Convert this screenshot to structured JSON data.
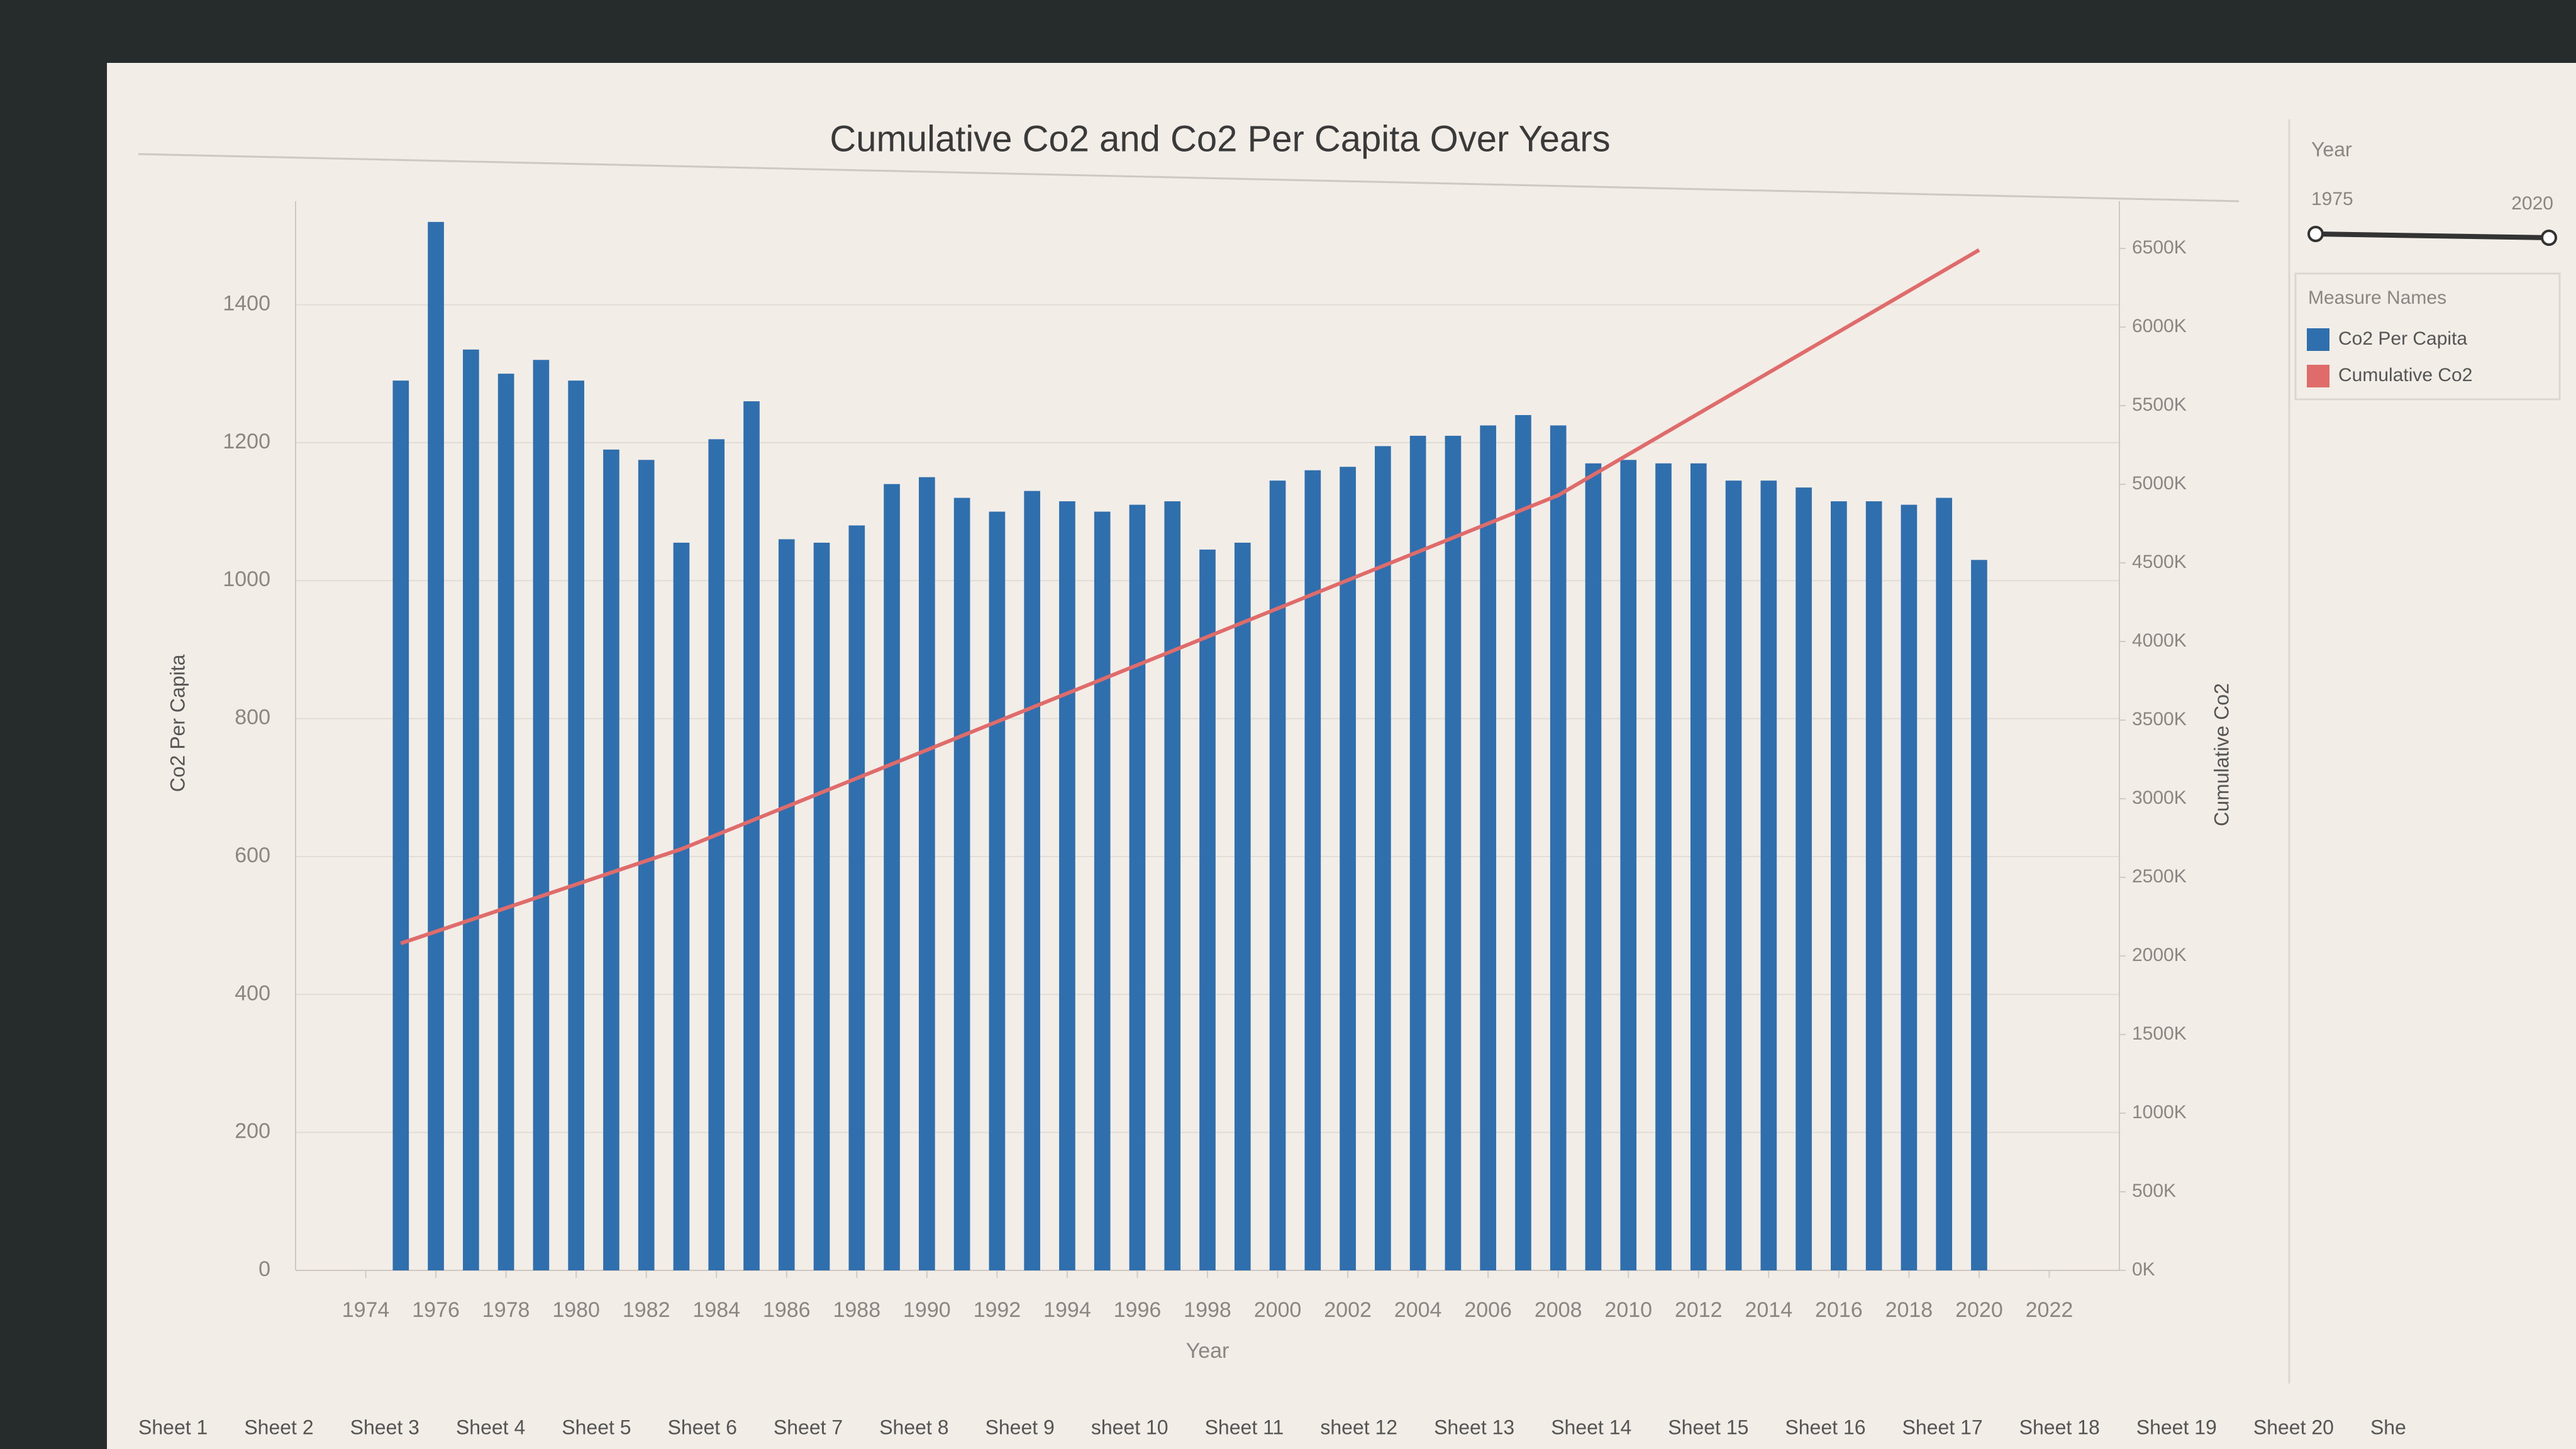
{
  "chart_data": {
    "type": "combo",
    "title": "Cumulative Co2 and Co2 Per Capita Over Years",
    "x_label": "Year",
    "y_label": "Co2 Per Capita",
    "y2_label": "Cumulative Co2",
    "x": [
      1975,
      1976,
      1977,
      1978,
      1979,
      1980,
      1981,
      1982,
      1983,
      1984,
      1985,
      1986,
      1987,
      1988,
      1989,
      1990,
      1991,
      1992,
      1993,
      1994,
      1995,
      1996,
      1997,
      1998,
      1999,
      2000,
      2001,
      2002,
      2003,
      2004,
      2005,
      2006,
      2007,
      2008,
      2009,
      2010,
      2011,
      2012,
      2013,
      2014,
      2015,
      2016,
      2017,
      2018,
      2019,
      2020
    ],
    "series": [
      {
        "name": "Co2 Per Capita",
        "type": "bar",
        "color": "#2f6fae",
        "values": [
          1290,
          1520,
          1335,
          1300,
          1320,
          1290,
          1190,
          1175,
          1055,
          1205,
          1260,
          1060,
          1055,
          1080,
          1140,
          1150,
          1120,
          1100,
          1130,
          1115,
          1100,
          1110,
          1115,
          1045,
          1055,
          1145,
          1160,
          1165,
          1195,
          1210,
          1210,
          1225,
          1240,
          1225,
          1170,
          1175,
          1170,
          1170,
          1145,
          1145,
          1135,
          1115,
          1115,
          1110,
          1120,
          1030
        ]
      },
      {
        "name": "Cumulative Co2",
        "type": "line",
        "axis": "y2",
        "color": "#e06b6b",
        "values": [
          2080000,
          2155000,
          2230000,
          2305000,
          2380000,
          2455000,
          2530000,
          2605000,
          2680000,
          2770000,
          2860000,
          2950000,
          3040000,
          3130000,
          3220000,
          3310000,
          3400000,
          3490000,
          3580000,
          3670000,
          3760000,
          3850000,
          3940000,
          4030000,
          4120000,
          4210000,
          4300000,
          4390000,
          4480000,
          4570000,
          4660000,
          4750000,
          4840000,
          4930000,
          5060000,
          5190000,
          5320000,
          5450000,
          5580000,
          5710000,
          5840000,
          5970000,
          6100000,
          6230000,
          6360000,
          6490000
        ]
      }
    ],
    "xlim": [
      1972,
      2024
    ],
    "xticks": [
      1974,
      1976,
      1978,
      1980,
      1982,
      1984,
      1986,
      1988,
      1990,
      1992,
      1994,
      1996,
      1998,
      2000,
      2002,
      2004,
      2006,
      2008,
      2010,
      2012,
      2014,
      2016,
      2018,
      2020,
      2022
    ],
    "ylim": [
      0,
      1550
    ],
    "yticks": [
      0,
      200,
      400,
      600,
      800,
      1000,
      1200,
      1400
    ],
    "y2lim": [
      0,
      6800000
    ],
    "y2ticks": [
      {
        "value": 0,
        "label": "0K"
      },
      {
        "value": 500000,
        "label": "500K"
      },
      {
        "value": 1000000,
        "label": "1000K"
      },
      {
        "value": 1500000,
        "label": "1500K"
      },
      {
        "value": 2000000,
        "label": "2000K"
      },
      {
        "value": 2500000,
        "label": "2500K"
      },
      {
        "value": 3000000,
        "label": "3000K"
      },
      {
        "value": 3500000,
        "label": "3500K"
      },
      {
        "value": 4000000,
        "label": "4000K"
      },
      {
        "value": 4500000,
        "label": "4500K"
      },
      {
        "value": 5000000,
        "label": "5000K"
      },
      {
        "value": 5500000,
        "label": "5500K"
      },
      {
        "value": 6000000,
        "label": "6000K"
      },
      {
        "value": 6500000,
        "label": "6500K"
      }
    ],
    "grid": true,
    "legend_title": "Measure Names"
  },
  "filter": {
    "title": "Year",
    "min": 1975,
    "max": 2020
  },
  "tabs": [
    "Sheet 1",
    "Sheet 2",
    "Sheet 3",
    "Sheet 4",
    "Sheet 5",
    "Sheet 6",
    "Sheet 7",
    "Sheet 8",
    "Sheet 9",
    "sheet 10",
    "Sheet 11",
    "sheet 12",
    "Sheet 13",
    "Sheet 14",
    "Sheet 15",
    "Sheet 16",
    "Sheet 17",
    "Sheet 18",
    "Sheet 19",
    "Sheet 20",
    "She"
  ]
}
